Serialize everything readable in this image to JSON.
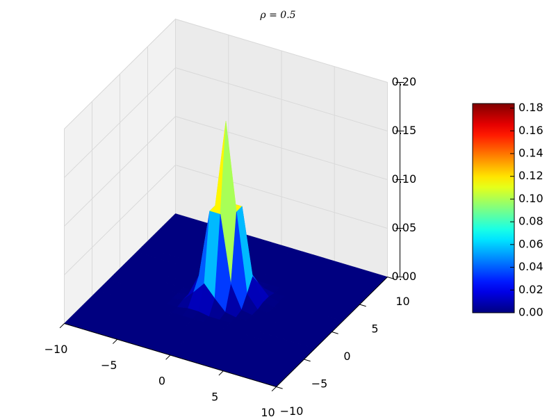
{
  "chart_data": {
    "type": "surface",
    "title": "ρ = 0.5",
    "x": [
      -10,
      -4,
      -3,
      -2,
      -1,
      0,
      1,
      2,
      3,
      4,
      10
    ],
    "y": [
      -10,
      -4,
      -3,
      -2,
      -1,
      0,
      1,
      2,
      3,
      4,
      10
    ],
    "z": [
      [
        0,
        0,
        0,
        0,
        0,
        0,
        0,
        0,
        0,
        0,
        0
      ],
      [
        0,
        0,
        0,
        0,
        0,
        0,
        0,
        0,
        0,
        0,
        0
      ],
      [
        0,
        0,
        0,
        0.002,
        0.002,
        0,
        0,
        0,
        0,
        0,
        0
      ],
      [
        0,
        0,
        0.002,
        0.013,
        0.025,
        0.013,
        0.002,
        0,
        0,
        0,
        0
      ],
      [
        0,
        0,
        0.002,
        0.025,
        0.094,
        0.094,
        0.025,
        0.002,
        0,
        0,
        0
      ],
      [
        0,
        0,
        0,
        0.013,
        0.094,
        0.184,
        0.094,
        0.013,
        0,
        0,
        0
      ],
      [
        0,
        0,
        0,
        0.002,
        0.025,
        0.094,
        0.094,
        0.025,
        0.002,
        0,
        0
      ],
      [
        0,
        0,
        0,
        0,
        0.002,
        0.013,
        0.025,
        0.013,
        0.002,
        0,
        0
      ],
      [
        0,
        0,
        0,
        0,
        0,
        0,
        0.002,
        0.002,
        0,
        0,
        0
      ],
      [
        0,
        0,
        0,
        0,
        0,
        0,
        0,
        0,
        0,
        0,
        0
      ],
      [
        0,
        0,
        0,
        0,
        0,
        0,
        0,
        0,
        0,
        0,
        0
      ]
    ],
    "xlim": [
      -10,
      10
    ],
    "ylim": [
      -10,
      10
    ],
    "zlim": [
      0,
      0.2
    ],
    "xticks": [
      {
        "value": -10,
        "label": "−10"
      },
      {
        "value": -5,
        "label": "−5"
      },
      0,
      5,
      10
    ],
    "yticks": [
      {
        "value": -10,
        "label": "−10"
      },
      {
        "value": -5,
        "label": "−5"
      },
      0,
      5,
      10
    ],
    "zticks": [
      {
        "value": 0,
        "label": "0.00"
      },
      {
        "value": 0.05,
        "label": "0.05"
      },
      {
        "value": 0.1,
        "label": "0.10"
      },
      {
        "value": 0.15,
        "label": "0.15"
      },
      {
        "value": 0.2,
        "label": "0.20"
      }
    ],
    "colormap": "jet",
    "grid": true,
    "colorbar": {
      "clim": [
        0,
        0.184
      ],
      "ticks": [
        {
          "value": 0,
          "label": "0.00"
        },
        {
          "value": 0.02,
          "label": "0.02"
        },
        {
          "value": 0.04,
          "label": "0.04"
        },
        {
          "value": 0.06,
          "label": "0.06"
        },
        {
          "value": 0.08,
          "label": "0.08"
        },
        {
          "value": 0.1,
          "label": "0.10"
        },
        {
          "value": 0.12,
          "label": "0.12"
        },
        {
          "value": 0.14,
          "label": "0.14"
        },
        {
          "value": 0.16,
          "label": "0.16"
        },
        {
          "value": 0.18,
          "label": "0.18"
        }
      ]
    }
  }
}
